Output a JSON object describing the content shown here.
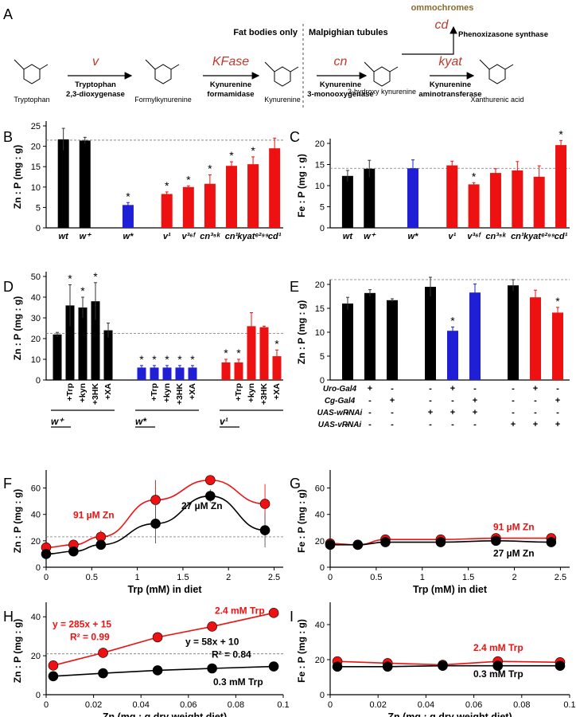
{
  "colors": {
    "wt": "#000000",
    "wstar": "#1f1fd6",
    "mut": "#ee1111",
    "arrow": "#c0392b",
    "brown": "#8b6b2e",
    "grid": "#777777"
  },
  "pathway": {
    "label": "A",
    "compounds": [
      "Tryptophan",
      "Formylkynurenine",
      "Kynurenine",
      "3-hydroxy kynurenine",
      "Xanthurenic acid"
    ],
    "genes": [
      "v",
      "KFase",
      "cn",
      "kyat",
      "cd"
    ],
    "enzymes": [
      [
        "Tryptophan",
        "2,3-dioxygenase"
      ],
      [
        "Kynurenine",
        "formamidase"
      ],
      [
        "Kynurenine",
        "3-monooxygenase"
      ],
      [
        "Kynurenine",
        "aminotransferase"
      ]
    ],
    "phenox": "Phenoxizasone synthase",
    "ommochromes": "ommochromes",
    "fat_bodies": "Fat bodies only",
    "malpighian": "Malpighian tubules"
  },
  "chart_data": [
    {
      "id": "B",
      "type": "bar",
      "ylabel": "Zn : P  (mg : g)",
      "ylim": [
        0,
        25
      ],
      "yticks": [
        0,
        5,
        10,
        15,
        20,
        25
      ],
      "ref": 21.5,
      "categories": [
        "wt",
        "w+",
        "w*",
        "v1",
        "v36f",
        "cn35k",
        "cn1",
        "kyate299",
        "cd1"
      ],
      "category_labels": [
        "wt",
        "w⁺",
        "w*",
        "v¹",
        "v³⁶ᶠ",
        "cn³⁵ᵏ",
        "cn¹",
        "kyatᵉ²⁹⁹",
        "cd¹"
      ],
      "values": [
        21.7,
        21.4,
        5.6,
        8.3,
        10.0,
        10.8,
        15.2,
        15.6,
        19.5
      ],
      "errors": [
        2.7,
        0.8,
        0.6,
        0.5,
        0.3,
        2.2,
        1.0,
        1.8,
        2.5
      ],
      "groups": [
        "wt",
        "wt",
        "wstar",
        "mut",
        "mut",
        "mut",
        "mut",
        "mut",
        "mut"
      ],
      "significant": [
        false,
        false,
        true,
        true,
        true,
        true,
        true,
        true,
        false
      ]
    },
    {
      "id": "C",
      "type": "bar",
      "ylabel": "Fe : P  (mg : g)",
      "ylim": [
        0,
        20
      ],
      "yticks": [
        0,
        5,
        10,
        15,
        20
      ],
      "ref": 14.1,
      "categories": [
        "wt",
        "w+",
        "w*",
        "v1",
        "v36f",
        "cn35k",
        "cn1",
        "kyate299",
        "cd1"
      ],
      "category_labels": [
        "wt",
        "w⁺",
        "w*",
        "v¹",
        "v³⁶ᶠ",
        "cn³⁵ᵏ",
        "cn¹",
        "kyatᵉ²⁹⁹",
        "cd¹"
      ],
      "values": [
        12.3,
        14.0,
        14.1,
        14.8,
        10.3,
        13.0,
        13.6,
        12.1,
        19.6
      ],
      "errors": [
        1.3,
        2.0,
        2.0,
        1.0,
        0.4,
        1.0,
        2.1,
        2.6,
        1.1
      ],
      "groups": [
        "wt",
        "wt",
        "wstar",
        "mut",
        "mut",
        "mut",
        "mut",
        "mut",
        "mut"
      ],
      "significant": [
        false,
        false,
        false,
        false,
        true,
        false,
        false,
        false,
        true
      ]
    },
    {
      "id": "D",
      "type": "bar",
      "ylabel": "Zn : P  (mg : g)",
      "ylim": [
        0,
        50
      ],
      "yticks": [
        0,
        10,
        20,
        30,
        40,
        50
      ],
      "ref": 22.5,
      "categories": [
        "w+",
        "+Trp",
        "+kyn",
        "+3HK",
        "+XA",
        "w*",
        "+Trp",
        "+kyn",
        "+3HK",
        "+XA",
        "v1",
        "+Trp",
        "+kyn",
        "+3HK",
        "+XA"
      ],
      "values": [
        22,
        36,
        35,
        38,
        24,
        6,
        6,
        6,
        6,
        6,
        8.5,
        8.5,
        26,
        25.5,
        11.5
      ],
      "errors": [
        1,
        10,
        5,
        9,
        3.5,
        1,
        1,
        1,
        1,
        1,
        1.5,
        1.5,
        6.5,
        0.5,
        3
      ],
      "groups": [
        "wt",
        "wt",
        "wt",
        "wt",
        "wt",
        "wstar",
        "wstar",
        "wstar",
        "wstar",
        "wstar",
        "mut",
        "mut",
        "mut",
        "mut",
        "mut"
      ],
      "significant": [
        false,
        true,
        true,
        true,
        false,
        true,
        true,
        true,
        true,
        true,
        true,
        true,
        false,
        false,
        true
      ],
      "group_labels": [
        "w⁺",
        "w*",
        "v¹"
      ]
    },
    {
      "id": "E",
      "type": "bar",
      "ylabel": "Zn : P  (mg : g)",
      "ylim": [
        0,
        20
      ],
      "yticks": [
        0,
        5,
        10,
        15,
        20
      ],
      "ref": 21,
      "values": [
        16,
        18.2,
        16.7,
        19.5,
        10.3,
        18.3,
        19.8,
        17.3,
        14.1
      ],
      "errors": [
        1.3,
        0.7,
        0.3,
        2.0,
        0.8,
        1.8,
        1.2,
        1.5,
        1.1
      ],
      "groups": [
        "wt",
        "wt",
        "wt",
        "wt",
        "wstar",
        "wstar",
        "wt",
        "mut",
        "mut"
      ],
      "significant": [
        false,
        false,
        false,
        false,
        true,
        false,
        false,
        false,
        true
      ],
      "genotype_rows": [
        {
          "label": "Uro-Gal4",
          "marks": [
            "-",
            "+",
            "-",
            "-",
            "+",
            "-",
            "-",
            "+",
            "-"
          ]
        },
        {
          "label": "Cg-Gal4",
          "marks": [
            "-",
            "-",
            "+",
            "-",
            "-",
            "+",
            "-",
            "-",
            "+"
          ]
        },
        {
          "label": "UAS-wRNAi",
          "marks": [
            "-",
            "-",
            "-",
            "+",
            "+",
            "+",
            "-",
            "-",
            "-"
          ]
        },
        {
          "label": "UAS-vRNAi",
          "marks": [
            "-",
            "-",
            "-",
            "-",
            "-",
            "-",
            "+",
            "+",
            "+"
          ]
        }
      ]
    },
    {
      "id": "F",
      "type": "line",
      "xlabel": "Trp (mM) in diet",
      "ylabel": "Zn : P  (mg : g)",
      "xlim": [
        0,
        2.6
      ],
      "ylim": [
        0,
        70
      ],
      "xticks": [
        0,
        0.5,
        1,
        1.5,
        2,
        2.5
      ],
      "yticks": [
        0,
        20,
        40,
        60
      ],
      "ref": 23,
      "x": [
        0,
        0.3,
        0.6,
        1.2,
        1.8,
        2.4
      ],
      "series": [
        {
          "name": "91 µM Zn",
          "color": "#ee1111",
          "values": [
            15,
            17,
            23,
            51,
            66,
            48
          ],
          "errors": [
            2,
            2,
            5,
            15,
            3,
            15
          ]
        },
        {
          "name": "27 µM Zn",
          "color": "#000000",
          "values": [
            10,
            12,
            17,
            33,
            54,
            28
          ],
          "errors": [
            2,
            2,
            3,
            15,
            5,
            13
          ]
        }
      ]
    },
    {
      "id": "G",
      "type": "line",
      "xlabel": "Trp (mM) in diet",
      "ylabel": "Fe : P  (mg : g)",
      "xlim": [
        0,
        2.6
      ],
      "ylim": [
        0,
        70
      ],
      "xticks": [
        0,
        0.5,
        1,
        1.5,
        2,
        2.5
      ],
      "yticks": [
        0,
        20,
        40,
        60
      ],
      "x": [
        0,
        0.3,
        0.6,
        1.2,
        1.8,
        2.4
      ],
      "series": [
        {
          "name": "91 µM Zn",
          "color": "#ee1111",
          "values": [
            18,
            17,
            21,
            21,
            22,
            22
          ],
          "errors": [
            1,
            1,
            1,
            1,
            1,
            1
          ]
        },
        {
          "name": "27 µM Zn",
          "color": "#000000",
          "values": [
            17,
            17,
            19,
            19,
            20,
            19
          ],
          "errors": [
            1,
            1,
            1,
            1,
            1,
            1
          ]
        }
      ]
    },
    {
      "id": "H",
      "type": "scatter",
      "xlabel": "Zn (mg : g dry weight diet)",
      "ylabel": "Zn : P  (mg : g)",
      "xlim": [
        0,
        0.1
      ],
      "ylim": [
        0,
        45
      ],
      "xticks": [
        0,
        0.02,
        0.04,
        0.06,
        0.08,
        0.1
      ],
      "yticks": [
        0,
        20,
        40
      ],
      "ref": 21,
      "x": [
        0.003,
        0.024,
        0.047,
        0.07,
        0.096
      ],
      "series": [
        {
          "name": "2.4 mM Trp",
          "color": "#ee1111",
          "values": [
            15,
            21.5,
            29.5,
            35,
            42
          ],
          "fit": "y = 285x + 15",
          "r2": "R² = 0.99"
        },
        {
          "name": "0.3 mM Trp",
          "color": "#000000",
          "values": [
            9.5,
            11,
            12.5,
            13.5,
            14.5
          ],
          "fit": "y = 58x + 10",
          "r2": "R² = 0.84"
        }
      ]
    },
    {
      "id": "I",
      "type": "scatter",
      "xlabel": "Zn (mg : g dry weight diet)",
      "ylabel": "Fe : P  (mg : g)",
      "xlim": [
        0,
        0.1
      ],
      "ylim": [
        0,
        50
      ],
      "xticks": [
        0,
        0.02,
        0.04,
        0.06,
        0.08,
        0.1
      ],
      "yticks": [
        0,
        20,
        40
      ],
      "x": [
        0.003,
        0.024,
        0.047,
        0.07,
        0.096
      ],
      "series": [
        {
          "name": "2.4 mM Trp",
          "color": "#ee1111",
          "values": [
            19,
            18,
            17,
            19,
            18.5
          ]
        },
        {
          "name": "0.3 mM Trp",
          "color": "#000000",
          "values": [
            16,
            16,
            16.5,
            16.5,
            16.5
          ]
        }
      ]
    }
  ]
}
